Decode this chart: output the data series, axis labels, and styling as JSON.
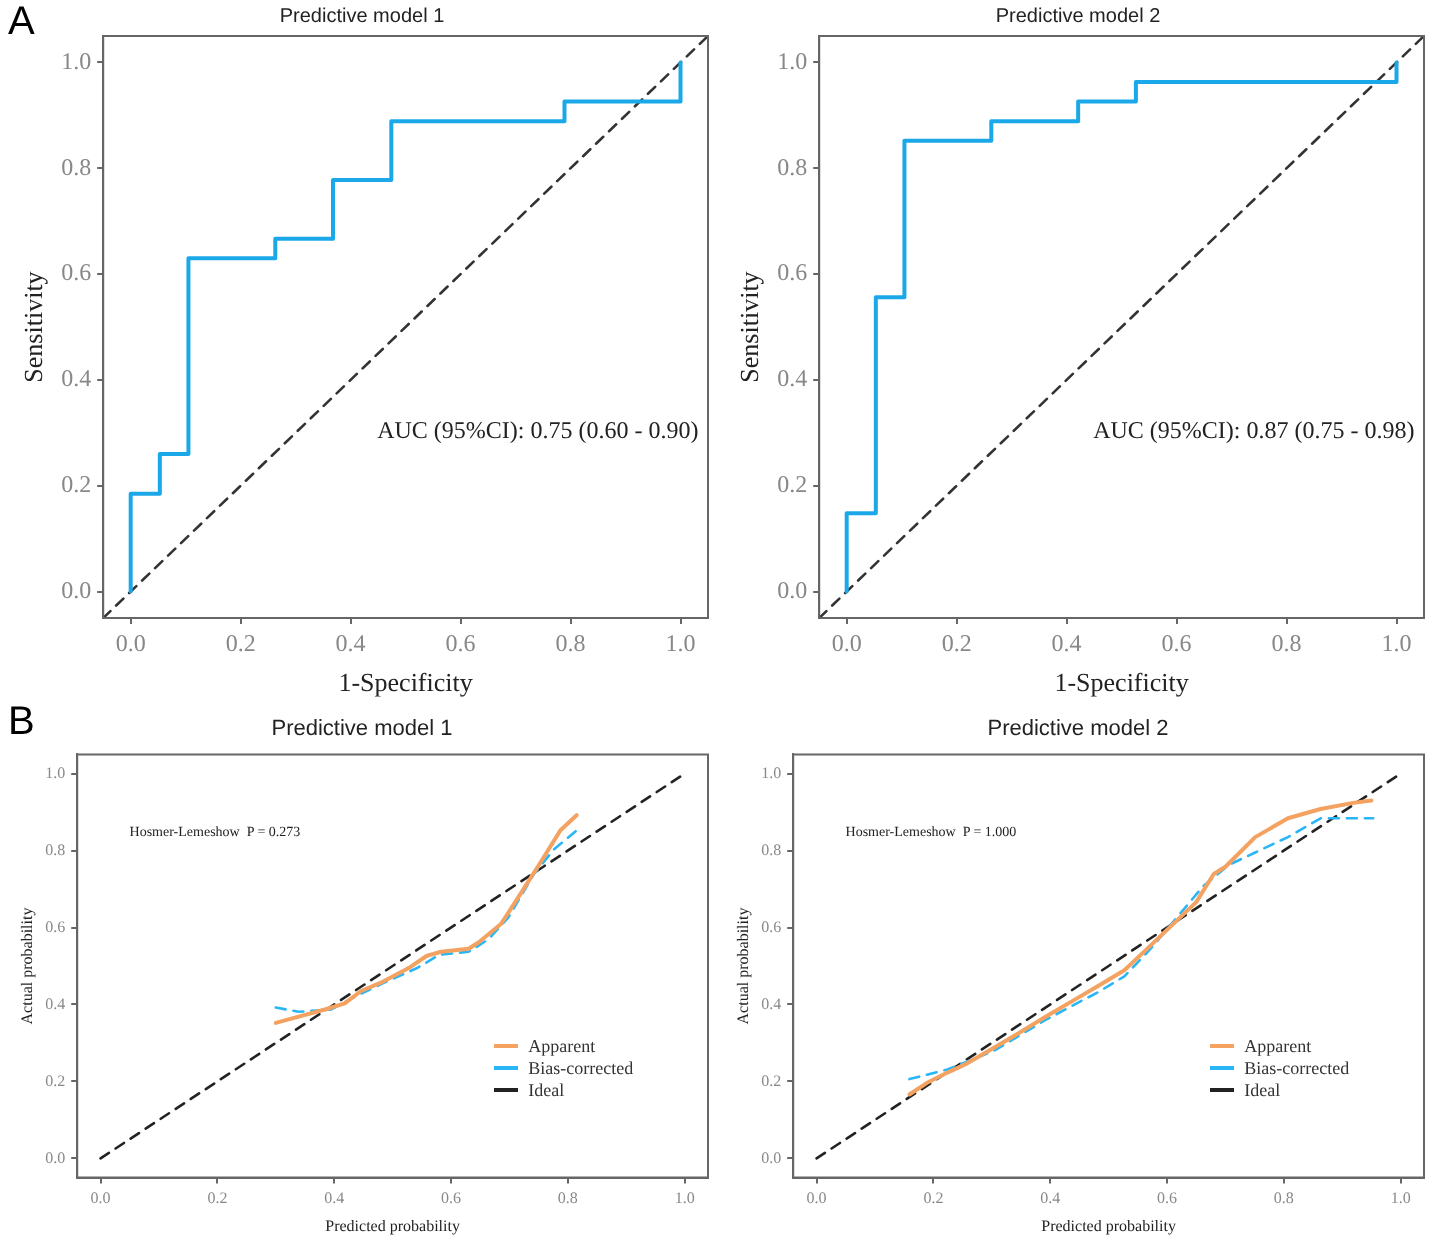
{
  "chart_data": [
    {
      "type": "step",
      "title": "Predictive model 1",
      "xlabel": "1-Specificity",
      "ylabel": "Sensitivity",
      "annotations": [
        "A",
        "AUC (95%CI): 0.75 (0.60 - 0.90)"
      ],
      "xlim": [
        -0.05,
        1.05
      ],
      "ylim": [
        -0.05,
        1.05
      ],
      "xticks": [
        {
          "value": 0,
          "label": "0.0"
        },
        {
          "value": 0.2,
          "label": "0.2"
        },
        {
          "value": 0.4,
          "label": "0.4"
        },
        {
          "value": 0.6,
          "label": "0.6"
        },
        {
          "value": 0.8,
          "label": "0.8"
        },
        {
          "value": 1,
          "label": "1.0"
        }
      ],
      "yticks": [
        {
          "value": 0,
          "label": "0.0"
        },
        {
          "value": 0.2,
          "label": "0.2"
        },
        {
          "value": 0.4,
          "label": "0.4"
        },
        {
          "value": 0.6,
          "label": "0.6"
        },
        {
          "value": 0.8,
          "label": "0.8"
        },
        {
          "value": 1,
          "label": "1.0"
        }
      ],
      "series": [
        {
          "color": "#1ba8e8",
          "x": [
            0,
            0,
            0.053,
            0.105,
            0.263,
            0.368,
            0.474,
            0.789,
            1
          ],
          "values": [
            0,
            0.185,
            0.26,
            0.63,
            0.667,
            0.778,
            0.889,
            0.926,
            1
          ]
        },
        {
          "type": "line",
          "line_style": "dashed",
          "color": "#333333",
          "x": [
            -0.05,
            1.05
          ],
          "values": [
            -0.05,
            1.05
          ]
        }
      ]
    },
    {
      "type": "step",
      "title": "Predictive model 2",
      "xlabel": "1-Specificity",
      "ylabel": "Sensitivity",
      "annotations": [
        "AUC (95%CI): 0.87 (0.75 - 0.98)"
      ],
      "xlim": [
        -0.05,
        1.05
      ],
      "ylim": [
        -0.05,
        1.05
      ],
      "xticks": [
        {
          "value": 0,
          "label": "0.0"
        },
        {
          "value": 0.2,
          "label": "0.2"
        },
        {
          "value": 0.4,
          "label": "0.4"
        },
        {
          "value": 0.6,
          "label": "0.6"
        },
        {
          "value": 0.8,
          "label": "0.8"
        },
        {
          "value": 1,
          "label": "1.0"
        }
      ],
      "yticks": [
        {
          "value": 0,
          "label": "0.0"
        },
        {
          "value": 0.2,
          "label": "0.2"
        },
        {
          "value": 0.4,
          "label": "0.4"
        },
        {
          "value": 0.6,
          "label": "0.6"
        },
        {
          "value": 0.8,
          "label": "0.8"
        },
        {
          "value": 1,
          "label": "1.0"
        }
      ],
      "series": [
        {
          "color": "#1ba8e8",
          "x": [
            0,
            0,
            0.053,
            0.105,
            0.263,
            0.421,
            0.526,
            1
          ],
          "values": [
            0,
            0.148,
            0.556,
            0.852,
            0.889,
            0.926,
            0.963,
            1
          ]
        },
        {
          "type": "line",
          "line_style": "dashed",
          "color": "#333333",
          "x": [
            -0.05,
            1.05
          ],
          "values": [
            -0.05,
            1.05
          ]
        }
      ]
    },
    {
      "type": "line",
      "title": "Predictive model 1",
      "xlabel": "Predicted probability",
      "ylabel": "Actual probability",
      "annotations": [
        "B",
        "Hosmer-Lemeshow  P = 0.273"
      ],
      "xlim": [
        -0.04,
        1.04
      ],
      "ylim": [
        -0.05,
        1.05
      ],
      "legend": "bottom right",
      "xticks": [
        {
          "value": 0,
          "label": "0.0"
        },
        {
          "value": 0.2,
          "label": "0.2"
        },
        {
          "value": 0.4,
          "label": "0.4"
        },
        {
          "value": 0.6,
          "label": "0.6"
        },
        {
          "value": 0.8,
          "label": "0.8"
        },
        {
          "value": 1,
          "label": "1.0"
        }
      ],
      "yticks": [
        {
          "value": 0,
          "label": "0.0"
        },
        {
          "value": 0.2,
          "label": "0.2"
        },
        {
          "value": 0.4,
          "label": "0.4"
        },
        {
          "value": 0.6,
          "label": "0.6"
        },
        {
          "value": 0.8,
          "label": "0.8"
        },
        {
          "value": 1,
          "label": "1.0"
        }
      ],
      "series": [
        {
          "name": "Apparent",
          "color": "#f4a261",
          "x": [
            0.3,
            0.384,
            0.418,
            0.446,
            0.479,
            0.53,
            0.558,
            0.583,
            0.63,
            0.647,
            0.686,
            0.72,
            0.754,
            0.787,
            0.815
          ],
          "values": [
            0.352,
            0.387,
            0.403,
            0.435,
            0.456,
            0.497,
            0.526,
            0.537,
            0.545,
            0.561,
            0.61,
            0.69,
            0.771,
            0.852,
            0.892
          ]
        },
        {
          "name": "Bias-corrected",
          "line_style": "dashed",
          "color": "#29b6f6",
          "x": [
            0.3,
            0.339,
            0.395,
            0.44,
            0.485,
            0.541,
            0.58,
            0.63,
            0.664,
            0.698,
            0.742,
            0.776,
            0.815
          ],
          "values": [
            0.392,
            0.381,
            0.387,
            0.424,
            0.456,
            0.494,
            0.529,
            0.537,
            0.569,
            0.626,
            0.739,
            0.803,
            0.852
          ]
        },
        {
          "name": "Ideal",
          "line_style": "dashed",
          "color": "#222222",
          "x": [
            0,
            1
          ],
          "values": [
            0,
            1
          ]
        }
      ]
    },
    {
      "type": "line",
      "title": "Predictive model 2",
      "xlabel": "Predicted probability",
      "ylabel": "Actual probability",
      "annotations": [
        "Hosmer-Lemeshow  P = 1.000"
      ],
      "xlim": [
        -0.04,
        1.04
      ],
      "ylim": [
        -0.05,
        1.05
      ],
      "legend": "bottom right",
      "xticks": [
        {
          "value": 0,
          "label": "0.0"
        },
        {
          "value": 0.2,
          "label": "0.2"
        },
        {
          "value": 0.4,
          "label": "0.4"
        },
        {
          "value": 0.6,
          "label": "0.6"
        },
        {
          "value": 0.8,
          "label": "0.8"
        },
        {
          "value": 1,
          "label": "1.0"
        }
      ],
      "yticks": [
        {
          "value": 0,
          "label": "0.0"
        },
        {
          "value": 0.2,
          "label": "0.2"
        },
        {
          "value": 0.4,
          "label": "0.4"
        },
        {
          "value": 0.6,
          "label": "0.6"
        },
        {
          "value": 0.8,
          "label": "0.8"
        },
        {
          "value": 1,
          "label": "1.0"
        }
      ],
      "series": [
        {
          "name": "Apparent",
          "color": "#f4a261",
          "x": [
            0.159,
            0.191,
            0.224,
            0.258,
            0.303,
            0.348,
            0.392,
            0.437,
            0.482,
            0.527,
            0.555,
            0.6,
            0.65,
            0.68,
            0.7,
            0.751,
            0.807,
            0.863,
            0.919,
            0.95
          ],
          "values": [
            0.166,
            0.198,
            0.223,
            0.247,
            0.287,
            0.327,
            0.368,
            0.408,
            0.448,
            0.489,
            0.529,
            0.594,
            0.666,
            0.739,
            0.758,
            0.835,
            0.884,
            0.908,
            0.924,
            0.93
          ]
        },
        {
          "name": "Bias-corrected",
          "line_style": "dashed",
          "color": "#29b6f6",
          "x": [
            0.159,
            0.224,
            0.303,
            0.392,
            0.482,
            0.527,
            0.572,
            0.617,
            0.661,
            0.706,
            0.751,
            0.807,
            0.863,
            0.897,
            0.953
          ],
          "values": [
            0.206,
            0.231,
            0.279,
            0.36,
            0.432,
            0.473,
            0.545,
            0.626,
            0.706,
            0.763,
            0.795,
            0.835,
            0.884,
            0.884,
            0.884
          ]
        },
        {
          "name": "Ideal",
          "line_style": "dashed",
          "color": "#222222",
          "x": [
            0,
            1
          ],
          "values": [
            0,
            1
          ]
        }
      ]
    }
  ]
}
